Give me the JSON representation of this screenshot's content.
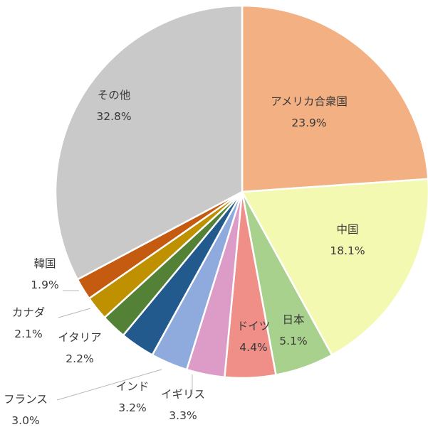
{
  "chart_data": {
    "type": "pie",
    "start": "12 o'clock",
    "direction": "clockwise",
    "legend": "none",
    "slices": [
      {
        "label": "アメリカ合衆国",
        "value": 23.9,
        "value_label": "23.9%",
        "color": "#f3b083"
      },
      {
        "label": "中国",
        "value": 18.1,
        "value_label": "18.1%",
        "color": "#f4f9b2"
      },
      {
        "label": "日本",
        "value": 5.1,
        "value_label": "5.1%",
        "color": "#a9d18e"
      },
      {
        "label": "ドイツ",
        "value": 4.4,
        "value_label": "4.4%",
        "color": "#f08f87"
      },
      {
        "label": "イギリス",
        "value": 3.3,
        "value_label": "3.3%",
        "color": "#dd9cc8"
      },
      {
        "label": "インド",
        "value": 3.2,
        "value_label": "3.2%",
        "color": "#8faadc"
      },
      {
        "label": "フランス",
        "value": 3.0,
        "value_label": "3.0%",
        "color": "#225a8e"
      },
      {
        "label": "イタリア",
        "value": 2.2,
        "value_label": "2.2%",
        "color": "#538135"
      },
      {
        "label": "カナダ",
        "value": 2.1,
        "value_label": "2.1%",
        "color": "#bf9000"
      },
      {
        "label": "韓国",
        "value": 1.9,
        "value_label": "1.9%",
        "color": "#c55a11"
      },
      {
        "label": "その他",
        "value": 32.8,
        "value_label": "32.8%",
        "color": "#c9c9c9"
      }
    ]
  }
}
